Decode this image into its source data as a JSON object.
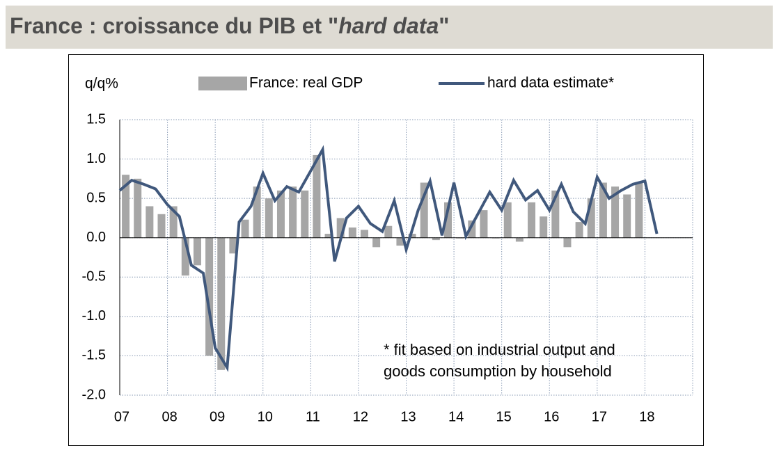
{
  "chart_data": {
    "type": "bar-line",
    "title": [
      "France : croissance du PIB et \"",
      "hard data",
      "\""
    ],
    "ylabel": "q/q%",
    "annotation": [
      "* fit based on industrial output and",
      "goods consumption by household"
    ],
    "x": [
      2007,
      2007.25,
      2007.5,
      2007.75,
      2008,
      2008.25,
      2008.5,
      2008.75,
      2009,
      2009.25,
      2009.5,
      2009.75,
      2010,
      2010.25,
      2010.5,
      2010.75,
      2011,
      2011.25,
      2011.5,
      2011.75,
      2012,
      2012.25,
      2012.5,
      2012.75,
      2013,
      2013.25,
      2013.5,
      2013.75,
      2014,
      2014.25,
      2014.5,
      2014.75,
      2015,
      2015.25,
      2015.5,
      2015.75,
      2016,
      2016.25,
      2016.5,
      2016.75,
      2017,
      2017.25,
      2017.5,
      2017.75,
      2018,
      2018.25
    ],
    "series": [
      {
        "name": "France: real GDP",
        "kind": "bar",
        "color": "#a6a6a6",
        "values": [
          0.8,
          0.75,
          0.4,
          0.3,
          0.4,
          -0.48,
          -0.35,
          -1.5,
          -1.68,
          -0.2,
          0.23,
          0.65,
          0.5,
          0.6,
          0.65,
          0.6,
          1.05,
          0.05,
          0.25,
          0.13,
          0.1,
          -0.12,
          0.15,
          -0.1,
          0.05,
          0.7,
          -0.03,
          0.45,
          0.0,
          0.22,
          0.35,
          0.0,
          0.45,
          -0.05,
          0.45,
          0.27,
          0.6,
          -0.12,
          0.2,
          0.5,
          0.7,
          0.65,
          0.55,
          0.7,
          null,
          null
        ]
      },
      {
        "name": "hard data estimate*",
        "kind": "line",
        "color": "#40587c",
        "values": [
          0.6,
          0.73,
          0.68,
          0.62,
          0.42,
          0.27,
          -0.35,
          -0.45,
          -1.4,
          -1.65,
          0.2,
          0.4,
          0.82,
          0.47,
          0.65,
          0.58,
          0.85,
          1.12,
          -0.3,
          0.25,
          0.4,
          0.18,
          0.08,
          0.47,
          -0.15,
          0.35,
          0.72,
          0.03,
          0.7,
          0.02,
          0.3,
          0.58,
          0.35,
          0.73,
          0.48,
          0.6,
          0.35,
          0.68,
          0.33,
          0.18,
          0.77,
          0.5,
          0.6,
          0.68,
          0.72,
          0.05
        ]
      }
    ],
    "xlim": [
      2007,
      2019
    ],
    "xticks": [
      {
        "value": 2007,
        "label": "07"
      },
      {
        "value": 2008,
        "label": "08"
      },
      {
        "value": 2009,
        "label": "09"
      },
      {
        "value": 2010,
        "label": "10"
      },
      {
        "value": 2011,
        "label": "11"
      },
      {
        "value": 2012,
        "label": "12"
      },
      {
        "value": 2013,
        "label": "13"
      },
      {
        "value": 2014,
        "label": "14"
      },
      {
        "value": 2015,
        "label": "15"
      },
      {
        "value": 2016,
        "label": "16"
      },
      {
        "value": 2017,
        "label": "17"
      },
      {
        "value": 2018,
        "label": "18"
      }
    ],
    "ylim": [
      -2.0,
      1.5
    ],
    "yticks": [
      {
        "value": 1.5,
        "label": "1.5"
      },
      {
        "value": 1.0,
        "label": "1.0"
      },
      {
        "value": 0.5,
        "label": "0.5"
      },
      {
        "value": 0.0,
        "label": "0.0"
      },
      {
        "value": -0.5,
        "label": "-0.5"
      },
      {
        "value": -1.0,
        "label": "-1.0"
      },
      {
        "value": -1.5,
        "label": "-1.5"
      },
      {
        "value": -2.0,
        "label": "-2.0"
      }
    ],
    "grid": true
  }
}
